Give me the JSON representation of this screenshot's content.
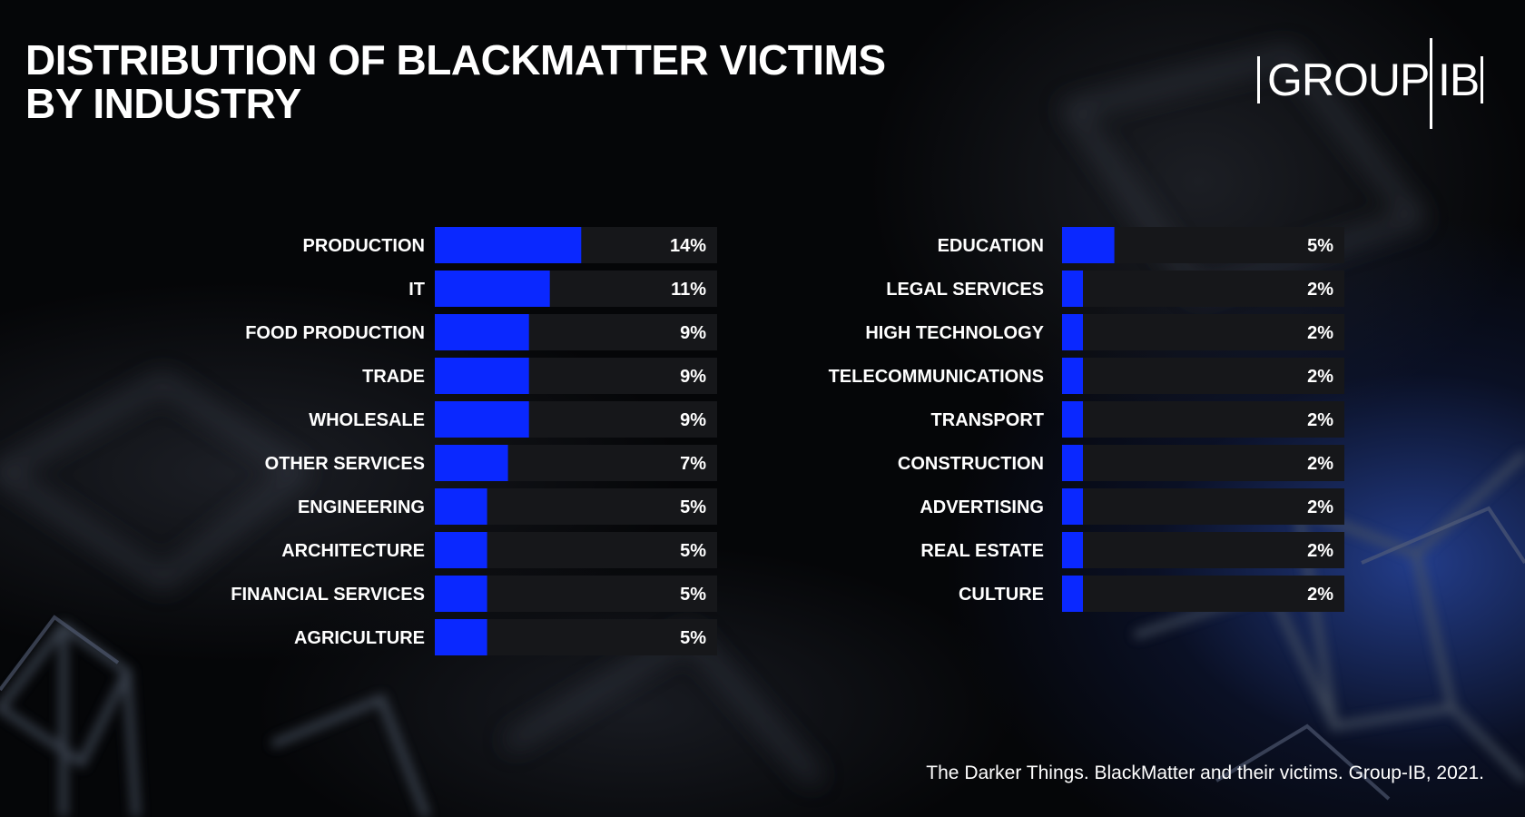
{
  "header": {
    "title_line1": "DISTRIBUTION OF BLACKMATTER VICTIMS",
    "title_line2": "BY INDUSTRY"
  },
  "logo": {
    "word1": "GROUP",
    "word2": "IB"
  },
  "footnote": "The Darker Things. BlackMatter and their victims. Group-IB, 2021.",
  "colors": {
    "bar": "#0a28ff",
    "track": "#16171a",
    "text": "#ffffff"
  },
  "chart_data": [
    {
      "type": "bar",
      "orientation": "horizontal",
      "unit": "%",
      "xlim": [
        0,
        27
      ],
      "categories": [
        "PRODUCTION",
        "IT",
        "FOOD PRODUCTION",
        "TRADE",
        "WHOLESALE",
        "OTHER SERVICES",
        "ENGINEERING",
        "ARCHITECTURE",
        "FINANCIAL SERVICES",
        "AGRICULTURE"
      ],
      "values": [
        14,
        11,
        9,
        9,
        9,
        7,
        5,
        5,
        5,
        5
      ],
      "value_labels": [
        "14%",
        "11%",
        "9%",
        "9%",
        "9%",
        "7%",
        "5%",
        "5%",
        "5%",
        "5%"
      ]
    },
    {
      "type": "bar",
      "orientation": "horizontal",
      "unit": "%",
      "xlim": [
        0,
        27
      ],
      "categories": [
        "EDUCATION",
        "LEGAL SERVICES",
        "HIGH TECHNOLOGY",
        "TELECOMMUNICATIONS",
        "TRANSPORT",
        "CONSTRUCTION",
        "ADVERTISING",
        "REAL ESTATE",
        "CULTURE"
      ],
      "values": [
        5,
        2,
        2,
        2,
        2,
        2,
        2,
        2,
        2
      ],
      "value_labels": [
        "5%",
        "2%",
        "2%",
        "2%",
        "2%",
        "2%",
        "2%",
        "2%",
        "2%"
      ]
    }
  ]
}
